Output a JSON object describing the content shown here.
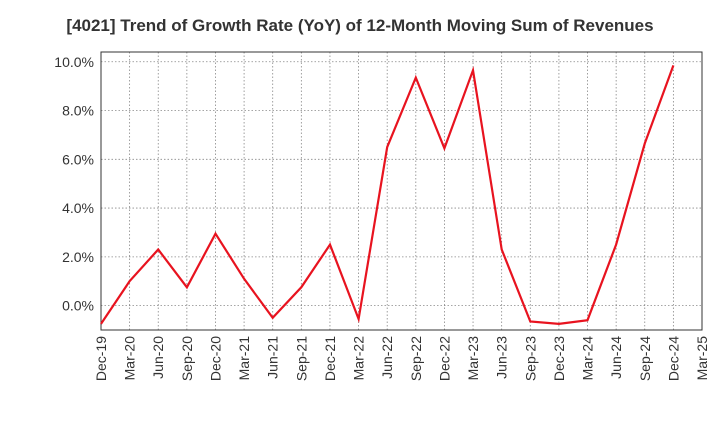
{
  "title": "[4021]  Trend of Growth Rate (YoY) of 12-Month Moving Sum of Revenues",
  "chart_data": {
    "type": "line",
    "title": "[4021]  Trend of Growth Rate (YoY) of 12-Month Moving Sum of Revenues",
    "xlabel": "",
    "ylabel": "",
    "ylim": [
      -1.0,
      10.4
    ],
    "y_ticks": [
      0.0,
      2.0,
      4.0,
      6.0,
      8.0,
      10.0
    ],
    "y_tick_labels": [
      "0.0%",
      "2.0%",
      "4.0%",
      "6.0%",
      "8.0%",
      "10.0%"
    ],
    "x_tick_labels": [
      "Dec-19",
      "Mar-20",
      "Jun-20",
      "Sep-20",
      "Dec-20",
      "Mar-21",
      "Jun-21",
      "Sep-21",
      "Dec-21",
      "Mar-22",
      "Jun-22",
      "Sep-22",
      "Dec-22",
      "Mar-23",
      "Jun-23",
      "Sep-23",
      "Dec-23",
      "Mar-24",
      "Jun-24",
      "Sep-24",
      "Dec-24",
      "Mar-25"
    ],
    "grid": true,
    "series": [
      {
        "color": "#e8131f",
        "x": [
          "Dec-19",
          "Mar-20",
          "Jun-20",
          "Sep-20",
          "Dec-20",
          "Mar-21",
          "Jun-21",
          "Sep-21",
          "Dec-21",
          "Mar-22",
          "Jun-22",
          "Sep-22",
          "Dec-22",
          "Mar-23",
          "Jun-23",
          "Sep-23",
          "Dec-23",
          "Mar-24",
          "Jun-24",
          "Sep-24",
          "Dec-24"
        ],
        "values": [
          -0.75,
          1.0,
          2.3,
          0.75,
          2.95,
          1.1,
          -0.5,
          0.75,
          2.5,
          -0.55,
          6.5,
          9.35,
          6.45,
          9.65,
          2.3,
          -0.65,
          -0.75,
          -0.6,
          2.5,
          6.65,
          9.85
        ]
      }
    ]
  }
}
